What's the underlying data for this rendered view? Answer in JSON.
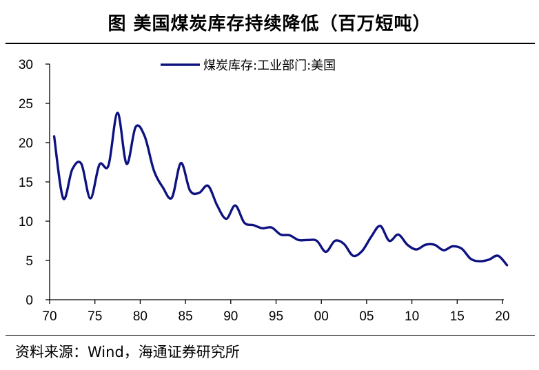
{
  "header": {
    "title": "图 美国煤炭库存持续降低（百万短吨）"
  },
  "footer": {
    "source_label": "资料来源：",
    "source_value": "Wind，海通证券研究所"
  },
  "colors": {
    "series": "#0d1280",
    "axis": "#000000"
  },
  "chart_data": {
    "type": "line",
    "title": "美国煤炭库存持续降低（百万短吨）",
    "xlabel": "",
    "ylabel": "",
    "xlim": [
      1970,
      2020
    ],
    "ylim": [
      0,
      30
    ],
    "grid": false,
    "legend_position": "top-center",
    "xticks": [
      1970,
      1975,
      1980,
      1985,
      1990,
      1995,
      2000,
      2005,
      2010,
      2015,
      2020
    ],
    "xtick_labels": [
      "70",
      "75",
      "80",
      "85",
      "90",
      "95",
      "00",
      "05",
      "10",
      "15",
      "20"
    ],
    "yticks": [
      0,
      5,
      10,
      15,
      20,
      25,
      30
    ],
    "ytick_labels": [
      "0",
      "5",
      "10",
      "15",
      "20",
      "25",
      "30"
    ],
    "series": [
      {
        "name": "煤炭库存:工业部门:美国",
        "x": [
          1970.5,
          1971.5,
          1972.5,
          1973.5,
          1974.5,
          1975.5,
          1976.5,
          1977.5,
          1978.5,
          1979.5,
          1980.5,
          1981.5,
          1982.5,
          1983.5,
          1984.5,
          1985.5,
          1986.5,
          1987.5,
          1988.5,
          1989.5,
          1990.5,
          1991.5,
          1992.5,
          1993.5,
          1994.5,
          1995.5,
          1996.5,
          1997.5,
          1998.5,
          1999.5,
          2000.5,
          2001.5,
          2002.5,
          2003.5,
          2004.5,
          2005.5,
          2006.5,
          2007.5,
          2008.5,
          2009.5,
          2010.5,
          2011.5,
          2012.5,
          2013.5,
          2014.5,
          2015.5,
          2016.5,
          2017.5,
          2018.5,
          2019.5,
          2020.5
        ],
        "values": [
          20.8,
          12.9,
          16.6,
          17.3,
          12.9,
          17.2,
          17.1,
          23.8,
          17.3,
          22.0,
          20.8,
          16.5,
          14.3,
          13.0,
          17.4,
          13.9,
          13.6,
          14.5,
          12.0,
          10.3,
          12.0,
          9.8,
          9.5,
          9.1,
          9.2,
          8.3,
          8.2,
          7.6,
          7.6,
          7.5,
          6.1,
          7.5,
          7.1,
          5.6,
          6.2,
          8.0,
          9.4,
          7.5,
          8.3,
          7.0,
          6.4,
          7.0,
          7.0,
          6.3,
          6.8,
          6.5,
          5.2,
          4.9,
          5.1,
          5.6,
          4.4
        ]
      }
    ]
  }
}
